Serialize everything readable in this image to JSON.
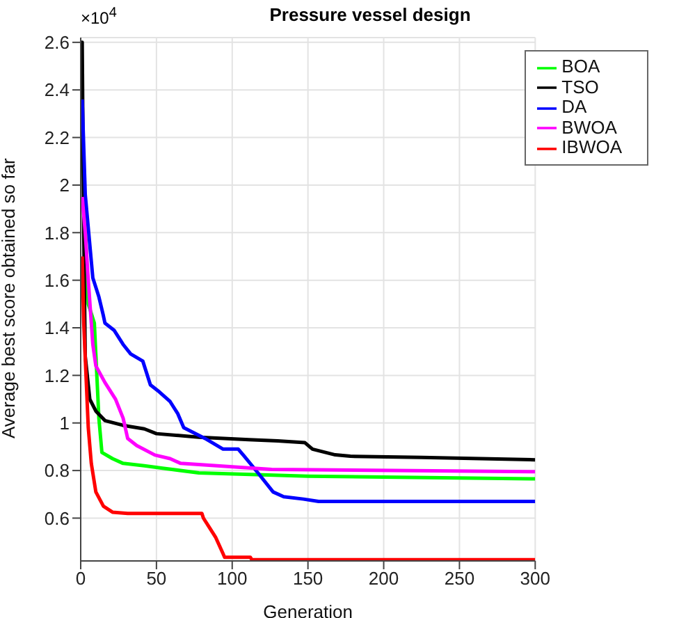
{
  "chart_data": {
    "type": "line",
    "title": "Pressure vessel design",
    "xlabel": "Generation",
    "ylabel": "Average best score obtained so far",
    "annotations": [
      "×10$^{4}$"
    ],
    "xlim": [
      0,
      300
    ],
    "xticks": [
      0,
      50,
      100,
      150,
      200,
      250,
      300
    ],
    "ylim": [
      0.42,
      2.62
    ],
    "yticks": [
      0.6,
      0.8,
      1,
      1.2,
      1.4,
      1.6,
      1.8,
      2,
      2.2,
      2.4,
      2.6
    ],
    "grid": true,
    "legend": "top right",
    "series": [
      {
        "name": "BOA",
        "color": "#00ff00",
        "x": [
          1,
          5,
          9,
          12,
          14,
          21,
          28,
          42,
          54,
          78,
          150,
          300
        ],
        "values": [
          2.2,
          1.5,
          1.42,
          1.02,
          0.876,
          0.85,
          0.83,
          0.82,
          0.81,
          0.79,
          0.776,
          0.765
        ]
      },
      {
        "name": "TSO",
        "color": "#000000",
        "x": [
          0,
          1,
          2,
          3,
          6,
          10,
          16,
          28,
          42,
          50,
          78,
          111,
          130,
          148,
          153,
          168,
          178,
          225,
          300
        ],
        "values": [
          2.6,
          2.6,
          1.8,
          1.28,
          1.1,
          1.05,
          1.01,
          0.99,
          0.975,
          0.955,
          0.94,
          0.93,
          0.925,
          0.917,
          0.89,
          0.866,
          0.86,
          0.855,
          0.845
        ]
      },
      {
        "name": "DA",
        "color": "#0000ff",
        "x": [
          1,
          3,
          6,
          8,
          12,
          15,
          16,
          22,
          28,
          33,
          41,
          46,
          52,
          59,
          64,
          68,
          82,
          94,
          104,
          108,
          117,
          127,
          134,
          147,
          157,
          300
        ],
        "values": [
          2.36,
          1.96,
          1.75,
          1.61,
          1.53,
          1.45,
          1.42,
          1.39,
          1.33,
          1.29,
          1.26,
          1.16,
          1.13,
          1.09,
          1.04,
          0.98,
          0.935,
          0.89,
          0.89,
          0.86,
          0.79,
          0.71,
          0.69,
          0.68,
          0.67,
          0.67
        ]
      },
      {
        "name": "BWOA",
        "color": "#ff00ff",
        "x": [
          1,
          3,
          5,
          8,
          10,
          16,
          23,
          28,
          31,
          37,
          49,
          59,
          66,
          90,
          126,
          300
        ],
        "values": [
          1.95,
          1.8,
          1.6,
          1.33,
          1.24,
          1.17,
          1.1,
          1.02,
          0.935,
          0.905,
          0.865,
          0.85,
          0.83,
          0.82,
          0.805,
          0.795
        ]
      },
      {
        "name": "IBWOA",
        "color": "#ff0000",
        "x": [
          1,
          2,
          5,
          7,
          10,
          15,
          21,
          31,
          80,
          81,
          85,
          89,
          94,
          95,
          112,
          113,
          300
        ],
        "values": [
          1.7,
          1.42,
          0.98,
          0.83,
          0.71,
          0.65,
          0.625,
          0.62,
          0.62,
          0.6,
          0.56,
          0.52,
          0.45,
          0.435,
          0.435,
          0.425,
          0.425
        ]
      }
    ]
  }
}
